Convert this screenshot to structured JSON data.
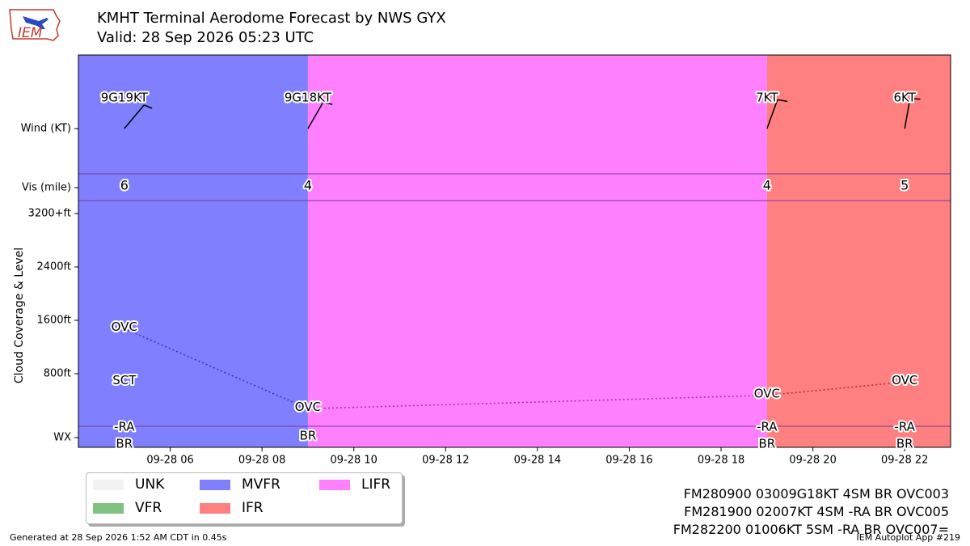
{
  "header": {
    "title": "KMHT Terminal Aerodome Forecast by NWS GYX",
    "valid": "Valid: 28 Sep 2026 05:23 UTC",
    "logo_text": "IEM"
  },
  "chart_data": {
    "type": "timeline",
    "x_ticks": [
      "09-28 06",
      "09-28 08",
      "09-28 10",
      "09-28 12",
      "09-28 14",
      "09-28 16",
      "09-28 18",
      "09-28 20",
      "09-28 22"
    ],
    "x_tick_hours": [
      6,
      8,
      10,
      12,
      14,
      16,
      18,
      20,
      22
    ],
    "x_range_hours": [
      4.0,
      23.0
    ],
    "rows": {
      "wind_label": "Wind (KT)",
      "vis_label": "Vis (mile)",
      "wx_label": "WX",
      "cloud_axis_label": "Cloud Coverage & Level",
      "cloud_ticks": [
        "800ft",
        "1600ft",
        "2400ft",
        "3200+ft"
      ],
      "cloud_tick_values": [
        800,
        1600,
        2400,
        3200
      ],
      "cloud_range": [
        0,
        3400
      ]
    },
    "categories": [
      {
        "label": "MVFR",
        "start": 4.0,
        "end": 9.0,
        "color": "#8080ff"
      },
      {
        "label": "LIFR",
        "start": 9.0,
        "end": 19.0,
        "color": "#ff80ff"
      },
      {
        "label": "IFR",
        "start": 19.0,
        "end": 23.0,
        "color": "#ff8080"
      }
    ],
    "periods": [
      {
        "time": 5.0,
        "wind_label": "9G19KT",
        "wind_dir": 40,
        "vis": "6",
        "clouds": [
          {
            "cover": "OVC",
            "level": 1500
          },
          {
            "cover": "SCT",
            "level": 700
          }
        ],
        "wx": [
          "-RA",
          "BR"
        ]
      },
      {
        "time": 9.0,
        "wind_label": "9G18KT",
        "wind_dir": 30,
        "vis": "4",
        "clouds": [
          {
            "cover": "OVC",
            "level": 300
          }
        ],
        "wx": [
          "BR"
        ]
      },
      {
        "time": 19.0,
        "wind_label": "7KT",
        "wind_dir": 20,
        "vis": "4",
        "clouds": [
          {
            "cover": "OVC",
            "level": 500
          }
        ],
        "wx": [
          "-RA",
          "BR"
        ]
      },
      {
        "time": 22.0,
        "wind_label": "6KT",
        "wind_dir": 10,
        "vis": "5",
        "clouds": [
          {
            "cover": "OVC",
            "level": 700
          }
        ],
        "wx": [
          "-RA",
          "BR"
        ]
      }
    ],
    "ceiling_lines": [
      {
        "from": 0,
        "to": 1,
        "color": "#3333cc"
      },
      {
        "from": 1,
        "to": 2,
        "color": "#aa33aa"
      },
      {
        "from": 2,
        "to": 3,
        "color": "#aa3344"
      }
    ]
  },
  "legend": {
    "items": [
      {
        "label": "UNK",
        "color": "#f2f2f2"
      },
      {
        "label": "VFR",
        "color": "#80c080"
      },
      {
        "label": "MVFR",
        "color": "#8080ff"
      },
      {
        "label": "IFR",
        "color": "#ff8080"
      },
      {
        "label": "LIFR",
        "color": "#ff80ff"
      }
    ]
  },
  "taf_text": [
    "FM280900 03009G18KT 4SM BR OVC003",
    "FM281900 02007KT 4SM -RA BR OVC005",
    "FM282200 01006KT 5SM -RA BR OVC007="
  ],
  "footer": {
    "generated": "Generated at 28 Sep 2026 1:52 AM CDT in 0.45s",
    "app": "IEM Autoplot App #219"
  }
}
